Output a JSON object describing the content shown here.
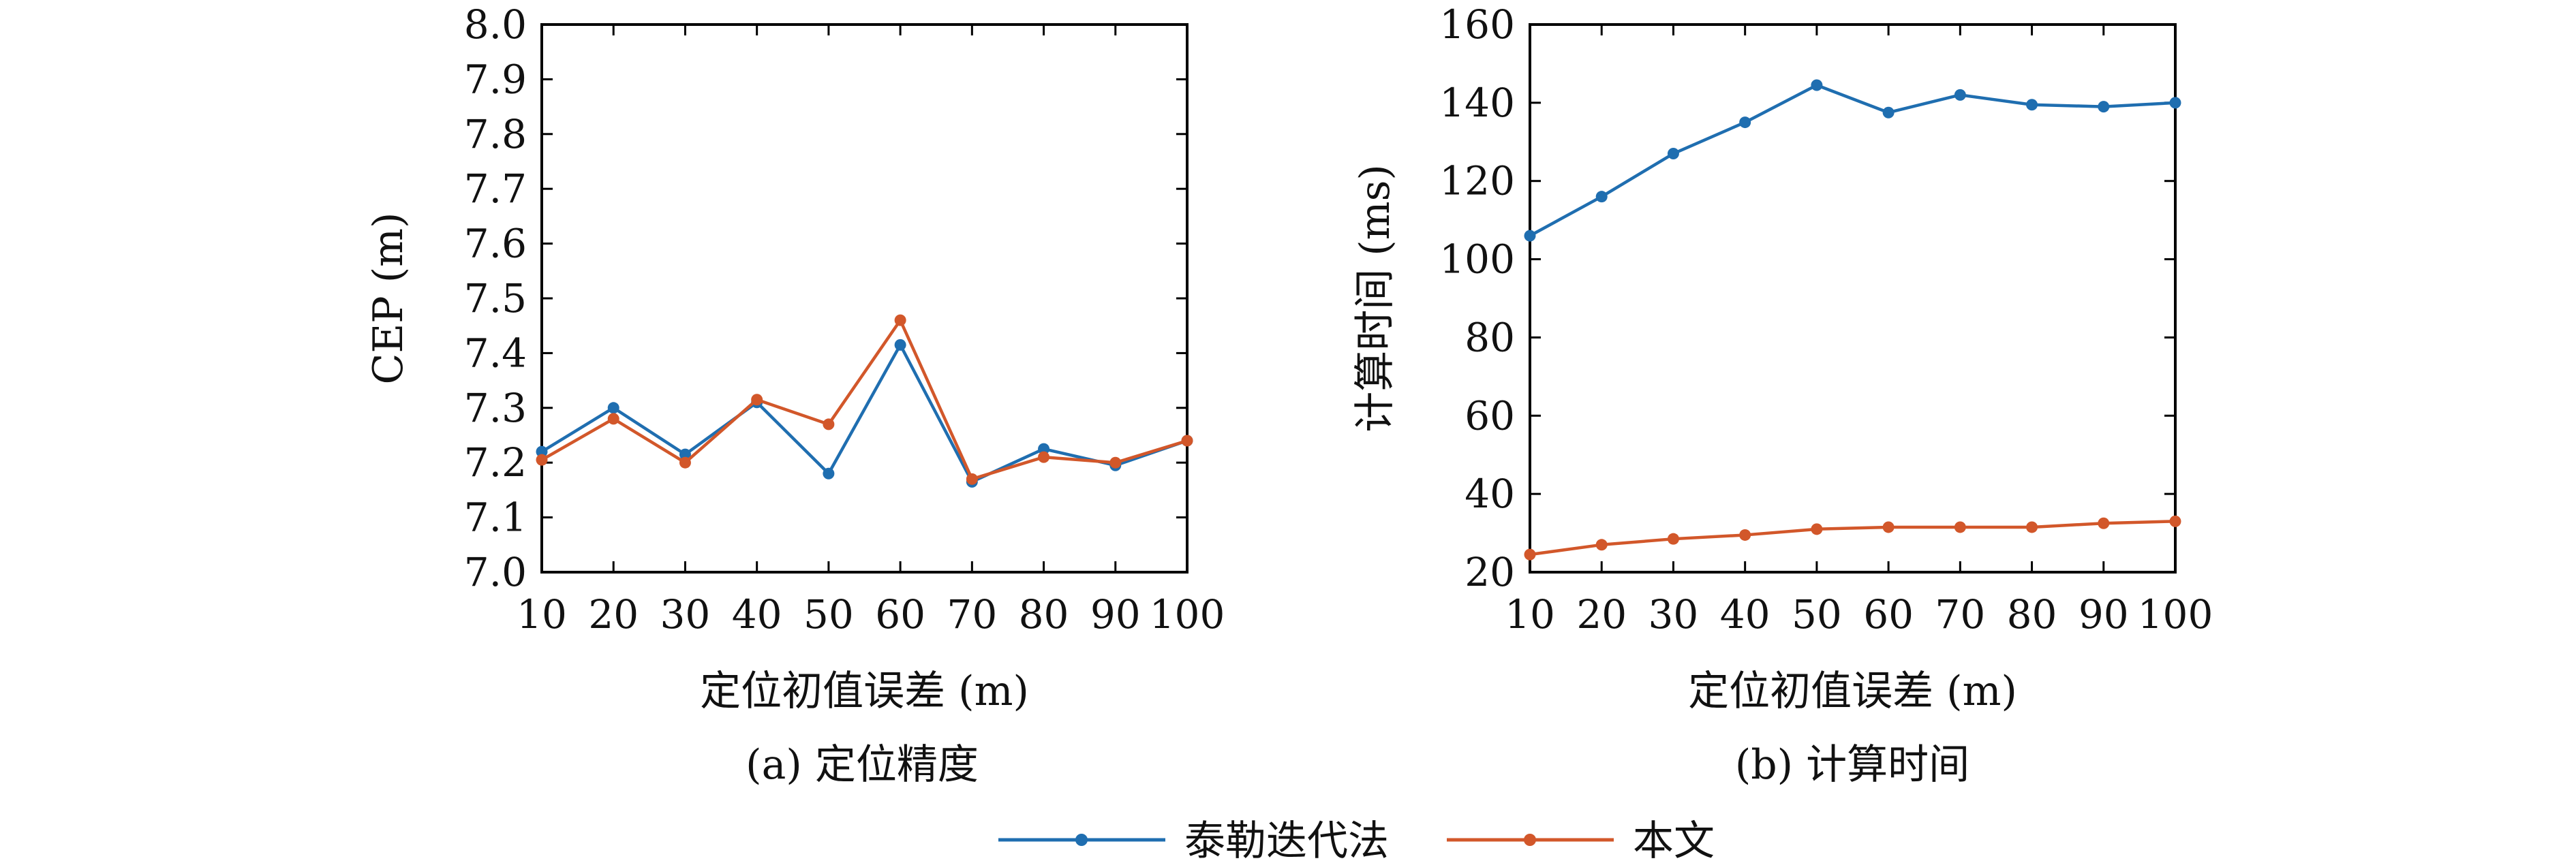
{
  "colors": {
    "taylor": "#1f6eb0",
    "ours": "#d2572a",
    "axis": "#000000"
  },
  "legend": {
    "items": [
      "泰勒迭代法",
      "本文"
    ]
  },
  "chart_data": [
    {
      "type": "line",
      "caption": "(a) 定位精度",
      "xlabel": "定位初值误差 (m)",
      "ylabel": "CEP (m)",
      "x": [
        10,
        20,
        30,
        40,
        50,
        60,
        70,
        80,
        90,
        100
      ],
      "xticks": [
        "10",
        "20",
        "30",
        "40",
        "50",
        "60",
        "70",
        "80",
        "90",
        "100"
      ],
      "ylim": [
        7.0,
        8.0
      ],
      "yticks": [
        "7.0",
        "7.1",
        "7.2",
        "7.3",
        "7.4",
        "7.5",
        "7.6",
        "7.7",
        "7.8",
        "7.9",
        "8.0"
      ],
      "series": [
        {
          "name": "泰勒迭代法",
          "values": [
            7.22,
            7.3,
            7.215,
            7.31,
            7.18,
            7.415,
            7.165,
            7.225,
            7.195,
            7.24
          ]
        },
        {
          "name": "本文",
          "values": [
            7.205,
            7.28,
            7.2,
            7.315,
            7.27,
            7.46,
            7.17,
            7.21,
            7.2,
            7.24
          ]
        }
      ],
      "grid": false
    },
    {
      "type": "line",
      "caption": "(b) 计算时间",
      "xlabel": "定位初值误差 (m)",
      "ylabel": "计算时间 (ms)",
      "x": [
        10,
        20,
        30,
        40,
        50,
        60,
        70,
        80,
        90,
        100
      ],
      "xticks": [
        "10",
        "20",
        "30",
        "40",
        "50",
        "60",
        "70",
        "80",
        "90",
        "100"
      ],
      "ylim": [
        20,
        160
      ],
      "yticks": [
        "20",
        "40",
        "60",
        "80",
        "100",
        "120",
        "140",
        "160"
      ],
      "series": [
        {
          "name": "泰勒迭代法",
          "values": [
            106,
            116,
            127,
            135,
            144.5,
            137.5,
            142,
            139.5,
            139,
            140
          ]
        },
        {
          "name": "本文",
          "values": [
            24.5,
            27,
            28.5,
            29.5,
            31,
            31.5,
            31.5,
            31.5,
            32.5,
            33
          ]
        }
      ],
      "grid": false
    }
  ]
}
